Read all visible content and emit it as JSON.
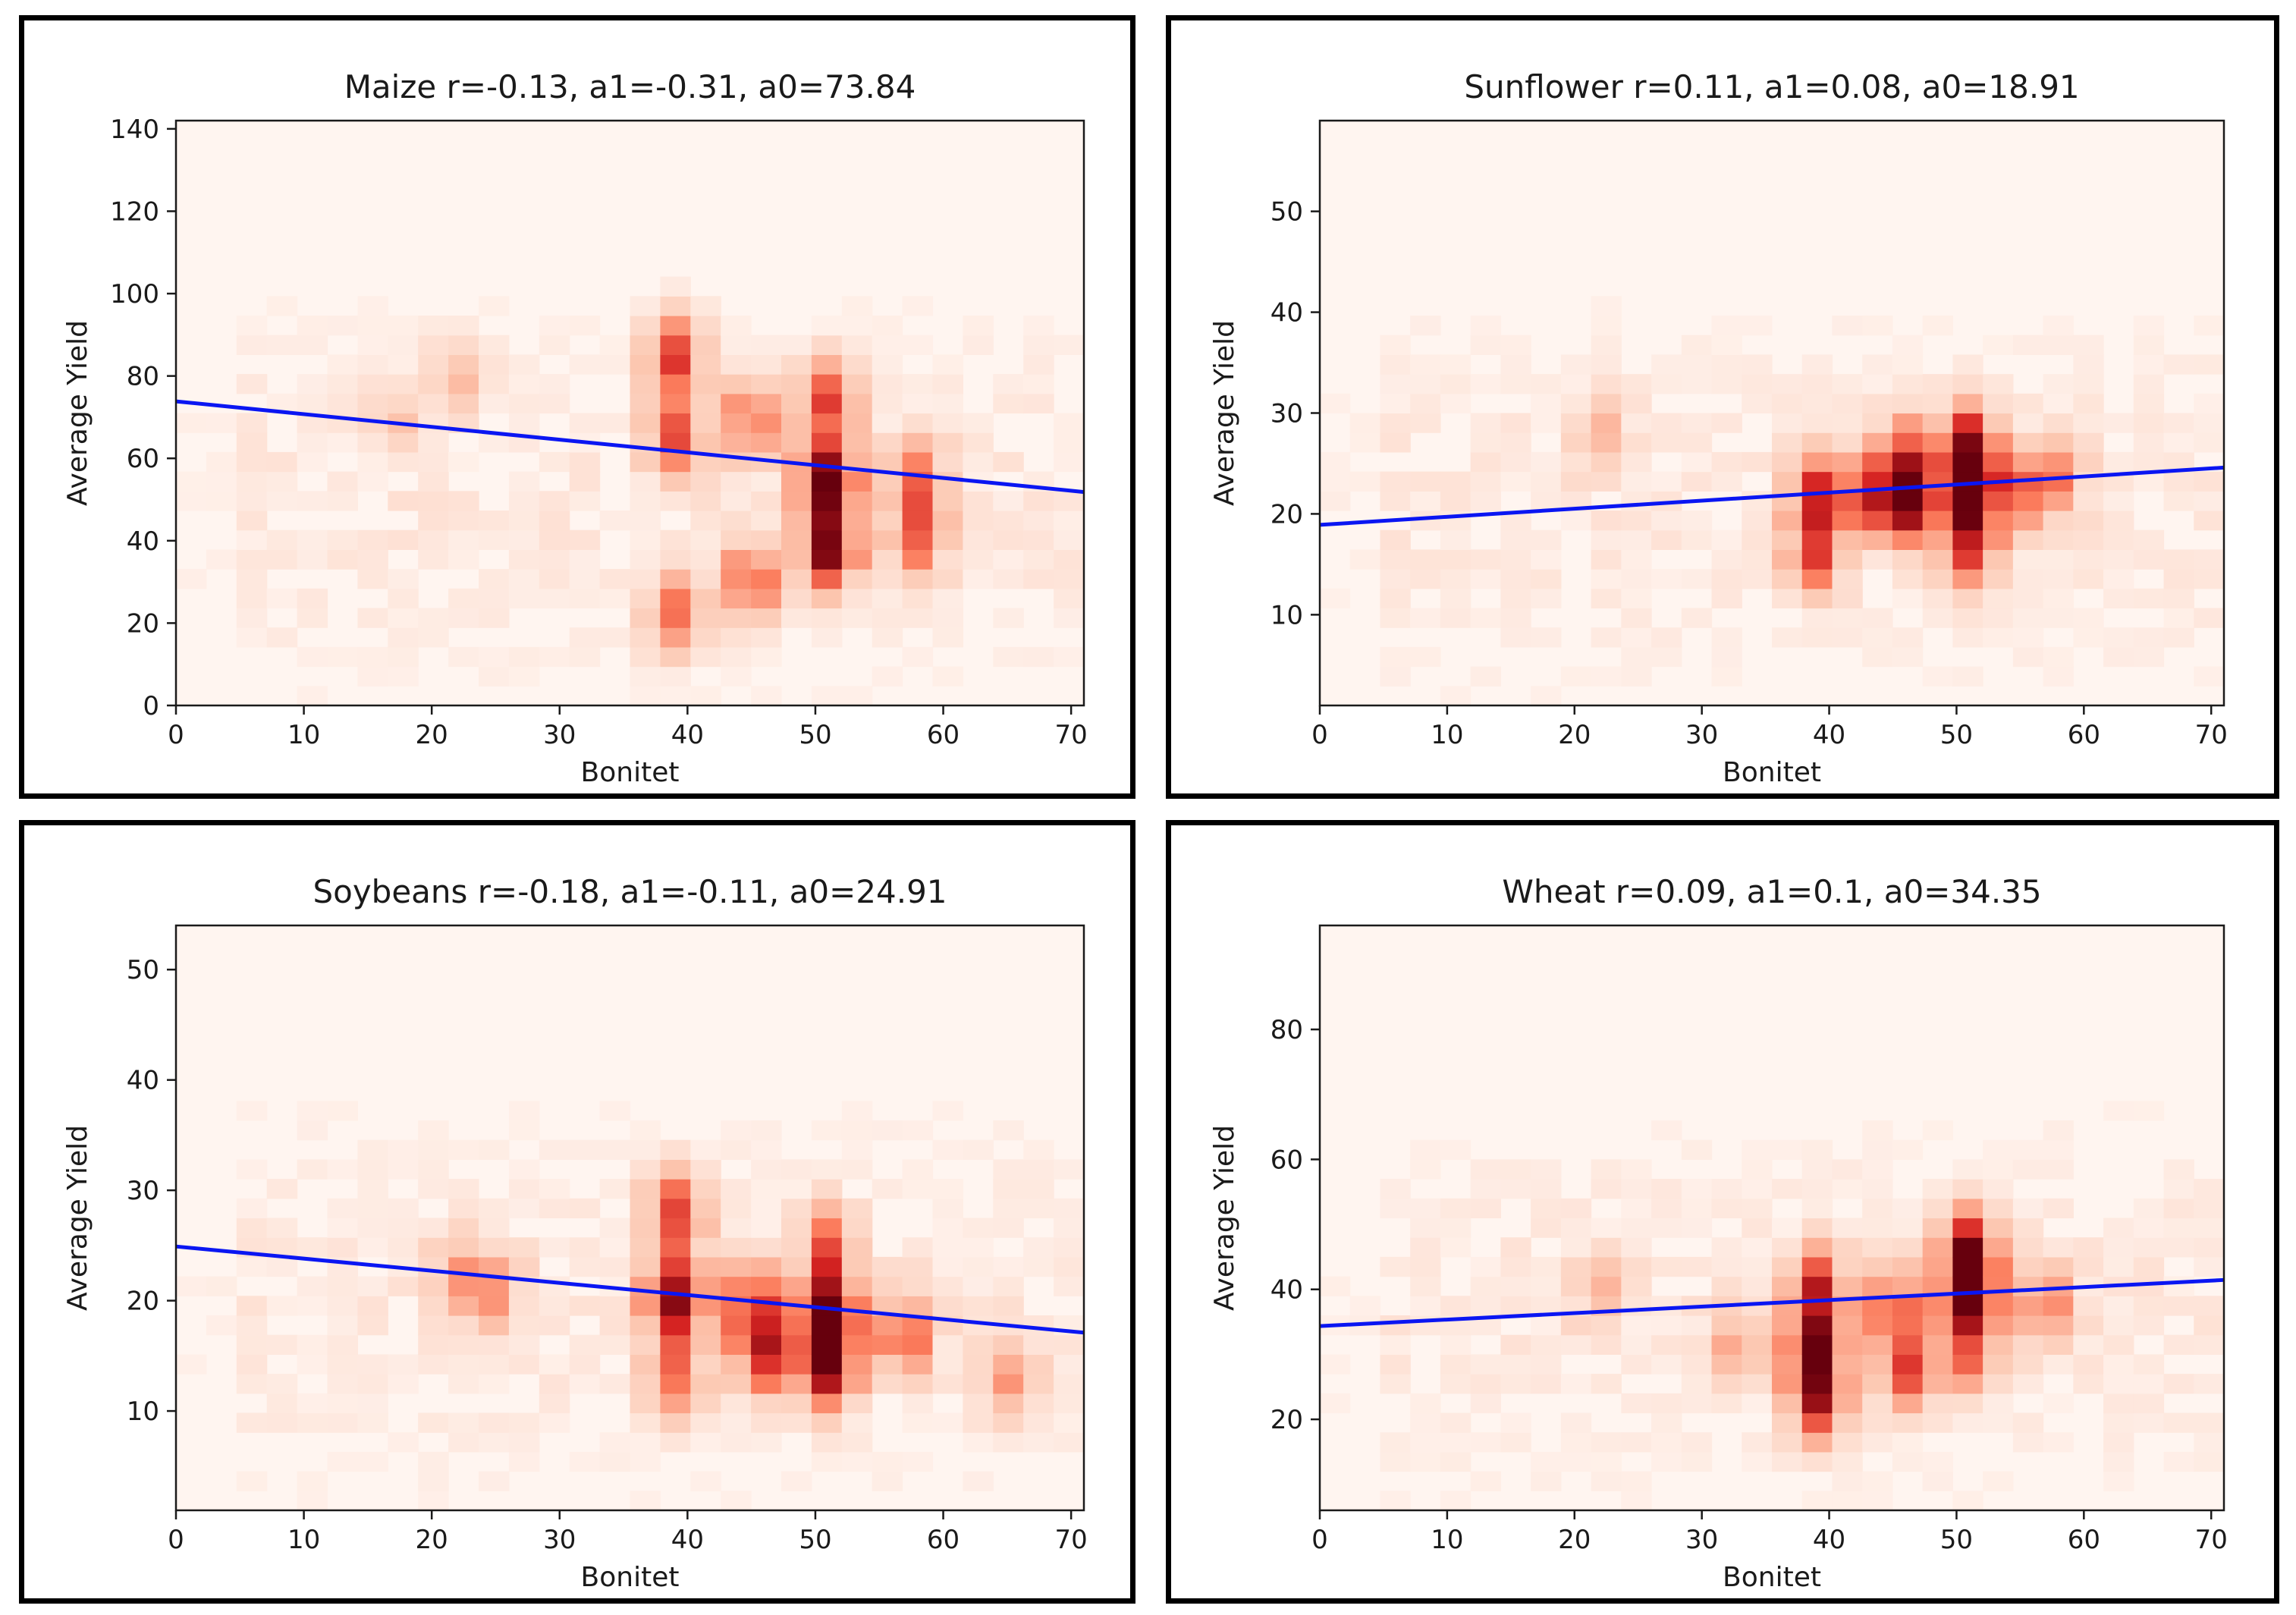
{
  "chart_data": [
    {
      "type": "heatmap",
      "title": "Maize r=-0.13, a1=-0.31, a0=73.84",
      "xlabel": "Bonitet",
      "ylabel": "Average Yield",
      "xlim": [
        0,
        71
      ],
      "ylim": [
        0,
        142
      ],
      "xticks": [
        0,
        10,
        20,
        30,
        40,
        50,
        60,
        70
      ],
      "yticks": [
        0,
        20,
        40,
        60,
        80,
        100,
        120,
        140
      ],
      "fit_line": {
        "slope": -0.31,
        "intercept": 73.84
      },
      "hot_spots": [
        {
          "x": 39,
          "y": 85,
          "intensity": 0.65
        },
        {
          "x": 39,
          "y": 65,
          "intensity": 0.55
        },
        {
          "x": 39,
          "y": 22,
          "intensity": 0.5
        },
        {
          "x": 45,
          "y": 70,
          "intensity": 0.5
        },
        {
          "x": 45,
          "y": 30,
          "intensity": 0.55
        },
        {
          "x": 51,
          "y": 55,
          "intensity": 0.95
        },
        {
          "x": 51,
          "y": 38,
          "intensity": 0.9
        },
        {
          "x": 51,
          "y": 75,
          "intensity": 0.6
        },
        {
          "x": 58,
          "y": 55,
          "intensity": 0.5
        },
        {
          "x": 58,
          "y": 40,
          "intensity": 0.45
        },
        {
          "x": 22,
          "y": 80,
          "intensity": 0.25
        },
        {
          "x": 17,
          "y": 70,
          "intensity": 0.2
        }
      ]
    },
    {
      "type": "heatmap",
      "title": "Sunflower r=0.11, a1=0.08, a0=18.91",
      "xlabel": "Bonitet",
      "ylabel": "Average Yield",
      "xlim": [
        0,
        71
      ],
      "ylim": [
        1,
        59
      ],
      "xticks": [
        0,
        10,
        20,
        30,
        40,
        50,
        60,
        70
      ],
      "yticks": [
        10,
        20,
        30,
        40,
        50
      ],
      "fit_line": {
        "slope": 0.08,
        "intercept": 18.91
      },
      "hot_spots": [
        {
          "x": 39,
          "y": 22,
          "intensity": 0.65
        },
        {
          "x": 39,
          "y": 16,
          "intensity": 0.55
        },
        {
          "x": 43,
          "y": 22,
          "intensity": 0.45
        },
        {
          "x": 46,
          "y": 21,
          "intensity": 0.8
        },
        {
          "x": 46,
          "y": 26,
          "intensity": 0.5
        },
        {
          "x": 51,
          "y": 22,
          "intensity": 0.95
        },
        {
          "x": 51,
          "y": 27,
          "intensity": 0.75
        },
        {
          "x": 51,
          "y": 16,
          "intensity": 0.55
        },
        {
          "x": 55,
          "y": 22,
          "intensity": 0.4
        },
        {
          "x": 58,
          "y": 24,
          "intensity": 0.4
        },
        {
          "x": 22,
          "y": 28,
          "intensity": 0.25
        }
      ]
    },
    {
      "type": "heatmap",
      "title": "Soybeans r=-0.18, a1=-0.11, a0=24.91",
      "xlabel": "Bonitet",
      "ylabel": "Average Yield",
      "xlim": [
        0,
        71
      ],
      "ylim": [
        1,
        54
      ],
      "xticks": [
        0,
        10,
        20,
        30,
        40,
        50,
        60,
        70
      ],
      "yticks": [
        10,
        20,
        30,
        40,
        50
      ],
      "fit_line": {
        "slope": -0.11,
        "intercept": 24.91
      },
      "hot_spots": [
        {
          "x": 39,
          "y": 20,
          "intensity": 0.9
        },
        {
          "x": 39,
          "y": 28,
          "intensity": 0.65
        },
        {
          "x": 39,
          "y": 13,
          "intensity": 0.5
        },
        {
          "x": 45,
          "y": 20,
          "intensity": 0.6
        },
        {
          "x": 46,
          "y": 15,
          "intensity": 0.65
        },
        {
          "x": 51,
          "y": 19,
          "intensity": 0.9
        },
        {
          "x": 51,
          "y": 14,
          "intensity": 0.85
        },
        {
          "x": 51,
          "y": 25,
          "intensity": 0.5
        },
        {
          "x": 57,
          "y": 17,
          "intensity": 0.55
        },
        {
          "x": 22,
          "y": 22,
          "intensity": 0.35
        },
        {
          "x": 25,
          "y": 21,
          "intensity": 0.3
        },
        {
          "x": 65,
          "y": 13,
          "intensity": 0.35
        }
      ]
    },
    {
      "type": "heatmap",
      "title": "Wheat r=0.09, a1=0.1, a0=34.35",
      "xlabel": "Bonitet",
      "ylabel": "Average Yield",
      "xlim": [
        0,
        71
      ],
      "ylim": [
        6,
        96
      ],
      "xticks": [
        0,
        10,
        20,
        30,
        40,
        50,
        60,
        70
      ],
      "yticks": [
        20,
        40,
        60,
        80
      ],
      "fit_line": {
        "slope": 0.1,
        "intercept": 34.35
      },
      "hot_spots": [
        {
          "x": 39,
          "y": 40,
          "intensity": 0.7
        },
        {
          "x": 39,
          "y": 30,
          "intensity": 0.85
        },
        {
          "x": 39,
          "y": 22,
          "intensity": 0.6
        },
        {
          "x": 45,
          "y": 38,
          "intensity": 0.5
        },
        {
          "x": 46,
          "y": 28,
          "intensity": 0.6
        },
        {
          "x": 51,
          "y": 40,
          "intensity": 0.95
        },
        {
          "x": 51,
          "y": 47,
          "intensity": 0.65
        },
        {
          "x": 51,
          "y": 30,
          "intensity": 0.5
        },
        {
          "x": 57,
          "y": 38,
          "intensity": 0.4
        },
        {
          "x": 22,
          "y": 40,
          "intensity": 0.25
        },
        {
          "x": 33,
          "y": 32,
          "intensity": 0.3
        }
      ]
    }
  ]
}
